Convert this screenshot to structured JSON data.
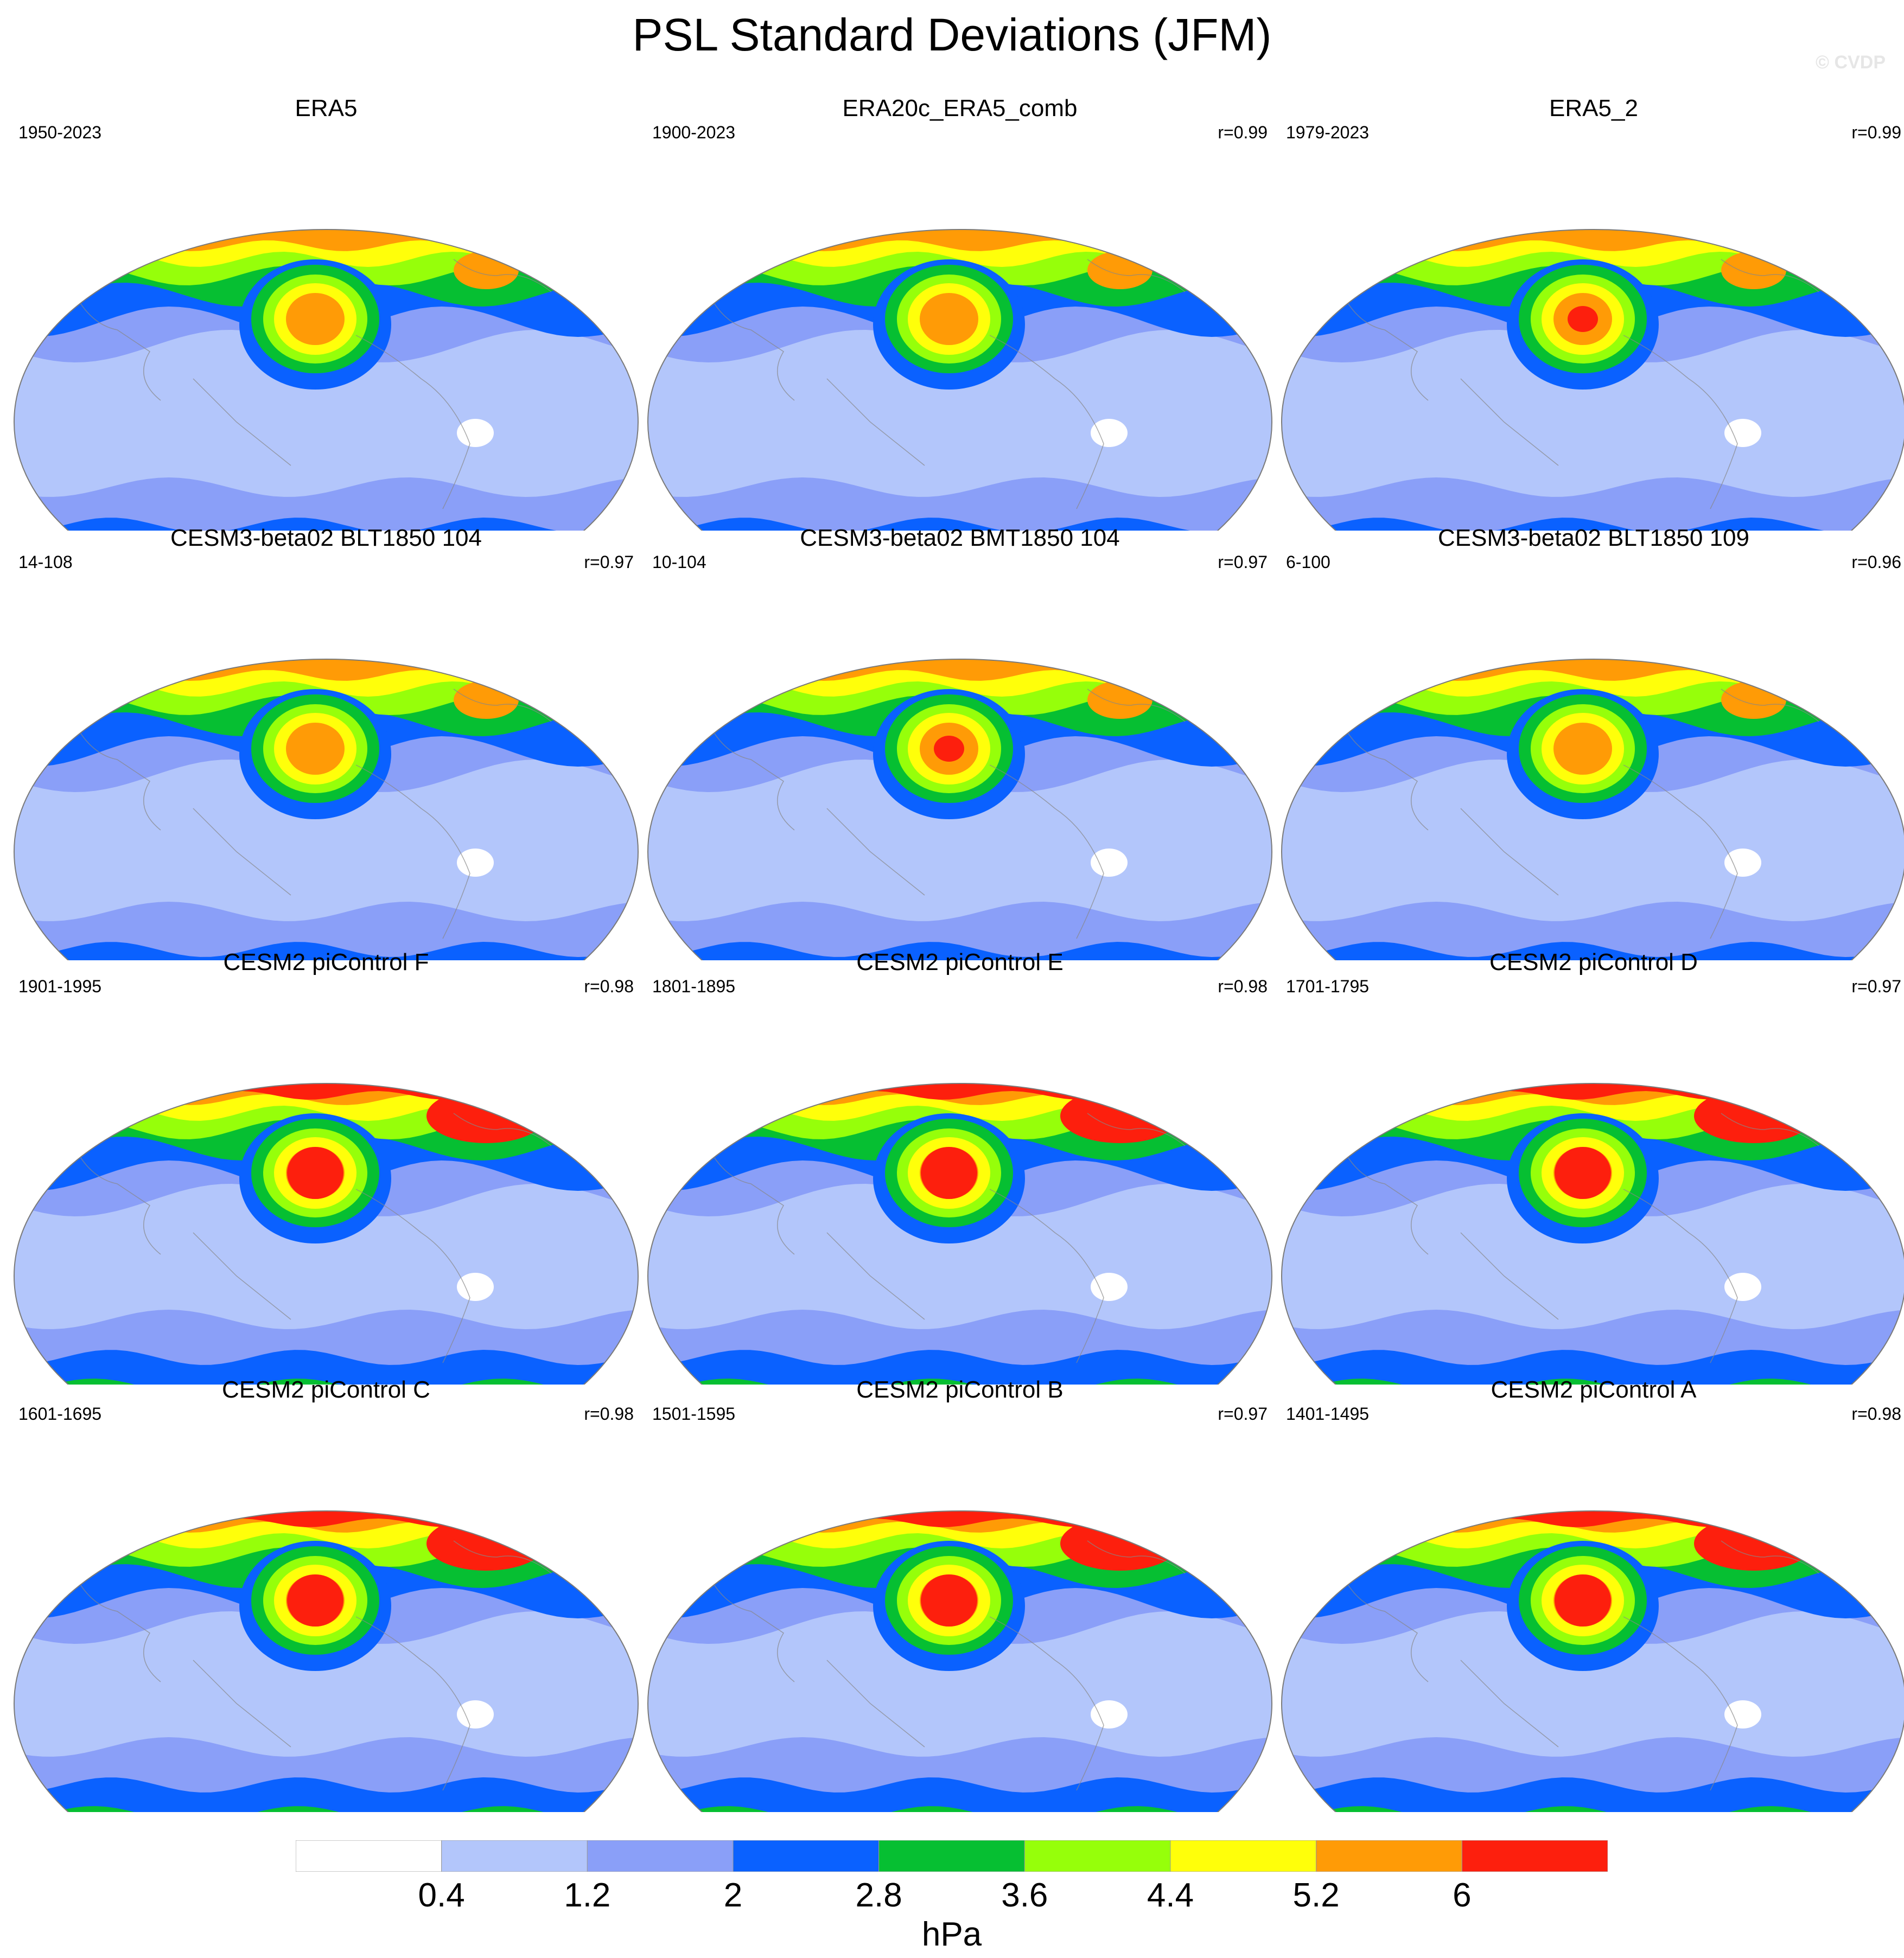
{
  "title": "PSL Standard Deviations (JFM)",
  "credit": "© CVDP",
  "panels": [
    {
      "name": "ERA5",
      "period": "1950-2023",
      "r": "",
      "variant": "obs",
      "blob": 5
    },
    {
      "name": "ERA20c_ERA5_comb",
      "period": "1900-2023",
      "r": "r=0.99",
      "variant": "obs",
      "blob": 5
    },
    {
      "name": "ERA5_2",
      "period": "1979-2023",
      "r": "r=0.99",
      "variant": "obs",
      "blob": 8
    },
    {
      "name": "CESM3-beta02 BLT1850 104",
      "period": "14-108",
      "r": "r=0.97",
      "variant": "cesm3",
      "blob": 5
    },
    {
      "name": "CESM3-beta02 BMT1850 104",
      "period": "10-104",
      "r": "r=0.97",
      "variant": "cesm3",
      "blob": 8
    },
    {
      "name": "CESM3-beta02 BLT1850 109",
      "period": "6-100",
      "r": "r=0.96",
      "variant": "cesm3",
      "blob": 5
    },
    {
      "name": "CESM2 piControl F",
      "period": "1901-1995",
      "r": "r=0.98",
      "variant": "cesm2",
      "blob": 8
    },
    {
      "name": "CESM2 piControl E",
      "period": "1801-1895",
      "r": "r=0.98",
      "variant": "cesm2",
      "blob": 8
    },
    {
      "name": "CESM2 piControl D",
      "period": "1701-1795",
      "r": "r=0.97",
      "variant": "cesm2",
      "blob": 8
    },
    {
      "name": "CESM2 piControl C",
      "period": "1601-1695",
      "r": "r=0.98",
      "variant": "cesm2",
      "blob": 8
    },
    {
      "name": "CESM2 piControl B",
      "period": "1501-1595",
      "r": "r=0.97",
      "variant": "cesm2",
      "blob": 8
    },
    {
      "name": "CESM2 piControl A",
      "period": "1401-1495",
      "r": "r=0.98",
      "variant": "cesm2",
      "blob": 8
    }
  ],
  "colorbar": {
    "units": "hPa",
    "labels": [
      "0.4",
      "1.2",
      "2",
      "2.8",
      "3.6",
      "4.4",
      "5.2",
      "6"
    ],
    "colors": [
      "#ffffff",
      "#b3c6fb",
      "#8a9ff8",
      "#0a61ff",
      "#06bf32",
      "#96ff0a",
      "#ffff0a",
      "#ff9b06",
      "#fd1f0d"
    ]
  }
}
